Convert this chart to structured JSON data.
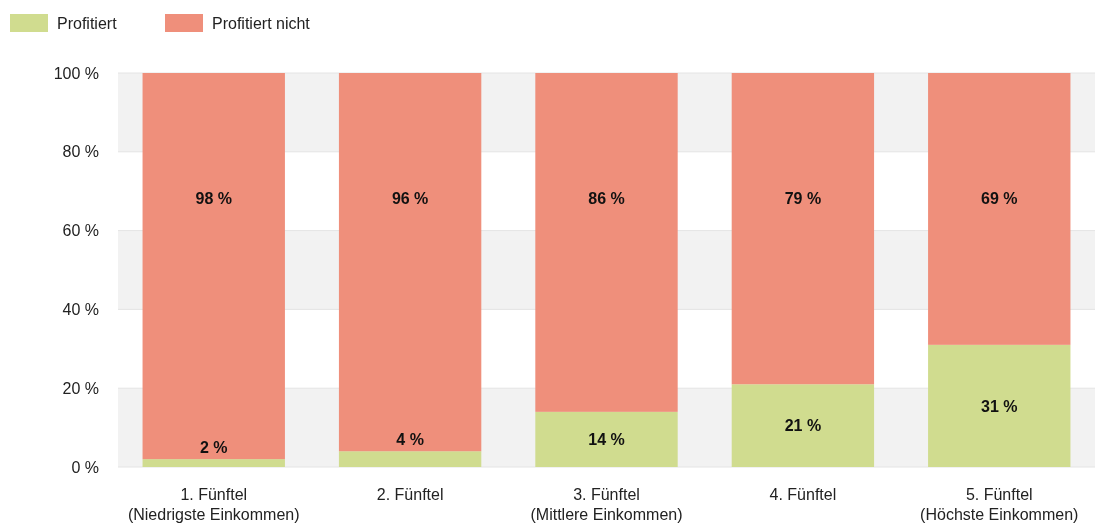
{
  "chart_data": {
    "type": "bar",
    "stacked": true,
    "categories": [
      "1. Fünftel\n(Niedrigste Einkommen)",
      "2. Fünftel",
      "3. Fünftel\n(Mittlere Einkommen)",
      "4. Fünftel",
      "5. Fünftel\n(Höchste Einkommen)"
    ],
    "series": [
      {
        "name": "Profitiert",
        "color": "#d0dc8f",
        "values": [
          2,
          4,
          14,
          21,
          31
        ],
        "value_labels": [
          "2 %",
          "4 %",
          "14 %",
          "21 %",
          "31 %"
        ]
      },
      {
        "name": "Profitiert nicht",
        "color": "#ef8f7b",
        "values": [
          98,
          96,
          86,
          79,
          69
        ],
        "value_labels": [
          "98 %",
          "96 %",
          "86 %",
          "79 %",
          "69 %"
        ]
      }
    ],
    "ylim": [
      0,
      100
    ],
    "yticks": [
      {
        "value": 0,
        "label": "0 %"
      },
      {
        "value": 20,
        "label": "20 %"
      },
      {
        "value": 40,
        "label": "40 %"
      },
      {
        "value": 60,
        "label": "60 %"
      },
      {
        "value": 80,
        "label": "80 %"
      },
      {
        "value": 100,
        "label": "100 %"
      }
    ],
    "grid": "y",
    "legend": "top left"
  }
}
